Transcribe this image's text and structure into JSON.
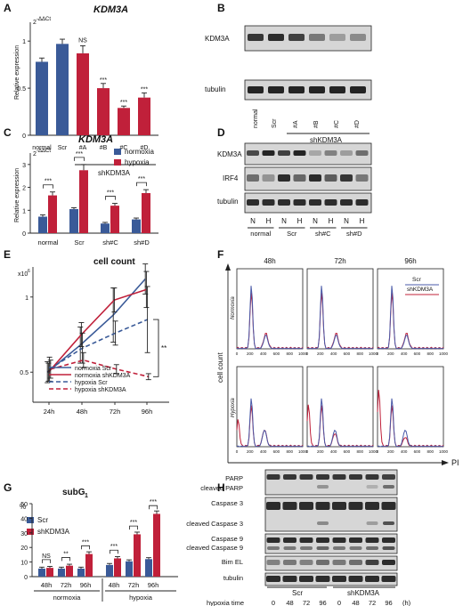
{
  "colors": {
    "blue": "#3a5a98",
    "red": "#c0203a",
    "errbar": "#222222",
    "flow_blue": "#4a5aa8",
    "flow_red": "#c0203a"
  },
  "panels": {
    "A": {
      "letter": "A",
      "title": "KDM3A",
      "ylabel_units": "2",
      "ylabel_sup": "-ΔΔCt",
      "ylabel": "Relative expression",
      "group_label": "shKDM3A",
      "ns": "NS",
      "star": "***"
    },
    "B": {
      "letter": "B",
      "row_labels": [
        "KDM3A",
        "tubulin"
      ],
      "lanes": [
        "normal",
        "Scr",
        "#A",
        "#B",
        "#C",
        "#D"
      ],
      "group_label": "shKDM3A"
    },
    "C": {
      "letter": "C",
      "title": "KDM3A",
      "ylabel_units": "2",
      "ylabel_sup": "-ΔΔCt",
      "ylabel": "Relative expression",
      "legend": [
        "normoxia",
        "hypoxia"
      ],
      "star": "***"
    },
    "D": {
      "letter": "D",
      "row_labels": [
        "KDM3A",
        "IRF4",
        "tubulin"
      ],
      "lane_labels": [
        "N",
        "H",
        "N",
        "H",
        "N",
        "H",
        "N",
        "H"
      ],
      "groups": [
        "normal",
        "Scr",
        "sh#C",
        "sh#D"
      ]
    },
    "E": {
      "letter": "E",
      "title": "cell count",
      "y_unit": "x10",
      "y_unit_sup": "6",
      "sig": "**",
      "legend": [
        "normoxia Scr",
        "normoxia shKDM3A",
        "hypoxia Scr",
        "hypoxia shKDM3A"
      ]
    },
    "F": {
      "letter": "F",
      "ylabel": "cell count",
      "xlabel": "PI",
      "times": [
        "48h",
        "72h",
        "96h"
      ],
      "rows": [
        "Normoxia",
        "Hypoxia"
      ],
      "legend": [
        "Scr",
        "shKDM3A"
      ],
      "ticks": [
        "0",
        "200",
        "400",
        "600",
        "800",
        "1000"
      ]
    },
    "G": {
      "letter": "G",
      "title": "subG",
      "title_sub": "1",
      "ylabel": "%",
      "legend": [
        "Scr",
        "shKDM3A"
      ],
      "groups": [
        "normoxia",
        "hypoxia"
      ],
      "sig": [
        "NS",
        "**",
        "***",
        "***",
        "***",
        "***"
      ]
    },
    "H": {
      "letter": "H",
      "row_labels": [
        "PARP",
        "cleaved PARP",
        "Caspase 3",
        "cleaved Caspase 3",
        "Caspase 9",
        "cleaved Caspase 9",
        "Bim EL",
        "tubulin"
      ],
      "groups": [
        "Scr",
        "shKDM3A"
      ],
      "footer": "hypoxia time",
      "times": [
        "0",
        "48",
        "72",
        "96",
        "0",
        "48",
        "72",
        "96"
      ],
      "unit": "(h)"
    }
  },
  "chart_data": [
    {
      "panel": "A",
      "type": "bar",
      "categories": [
        "normal",
        "Scr",
        "#A",
        "#B",
        "#C",
        "#D"
      ],
      "values": [
        0.78,
        0.97,
        0.87,
        0.5,
        0.29,
        0.4
      ],
      "errors": [
        0.04,
        0.05,
        0.08,
        0.05,
        0.02,
        0.05
      ],
      "colors": [
        "blue",
        "blue",
        "red",
        "red",
        "red",
        "red"
      ],
      "ylim": [
        0,
        1.2
      ],
      "yticks": [
        "0",
        "0.5",
        "1"
      ]
    },
    {
      "panel": "C",
      "type": "bar",
      "categories": [
        "normal",
        "Scr",
        "sh#C",
        "sh#D"
      ],
      "series": [
        {
          "name": "normoxia",
          "values": [
            0.72,
            1.05,
            0.42,
            0.6
          ],
          "errors": [
            0.08,
            0.06,
            0.05,
            0.06
          ]
        },
        {
          "name": "hypoxia",
          "values": [
            1.65,
            2.75,
            1.2,
            1.75
          ],
          "errors": [
            0.15,
            0.25,
            0.1,
            0.15
          ]
        }
      ],
      "ylim": [
        0,
        3.5
      ],
      "yticks": [
        "0",
        "1",
        "2",
        "3"
      ]
    },
    {
      "panel": "E",
      "type": "line",
      "categories": [
        "24h",
        "48h",
        "72h",
        "96h"
      ],
      "series": [
        {
          "name": "normoxia Scr",
          "values": [
            0.5,
            0.68,
            0.88,
            1.12
          ],
          "errors": [
            0.07,
            0.12,
            0.18,
            0.1
          ]
        },
        {
          "name": "normoxia shKDM3A",
          "values": [
            0.5,
            0.75,
            0.98,
            1.05
          ],
          "errors": [
            0.06,
            0.08,
            0.08,
            0.12
          ]
        },
        {
          "name": "hypoxia Scr",
          "values": [
            0.52,
            0.66,
            0.76,
            0.85
          ],
          "errors": [
            0.08,
            0.1,
            0.08,
            0.22
          ]
        },
        {
          "name": "hypoxia shKDM3A",
          "values": [
            0.52,
            0.58,
            0.52,
            0.47
          ],
          "errors": [
            0.06,
            0.05,
            0.03,
            0.02
          ]
        }
      ],
      "ylim": [
        0.3,
        1.2
      ],
      "yticks": [
        "0.5",
        "1"
      ]
    },
    {
      "panel": "G",
      "type": "bar",
      "categories": [
        "48h",
        "72h",
        "96h",
        "48h",
        "72h",
        "96h"
      ],
      "series": [
        {
          "name": "Scr",
          "values": [
            5.5,
            5.5,
            5.5,
            8,
            10.5,
            12
          ],
          "errors": [
            1,
            1,
            1,
            1,
            1,
            1
          ]
        },
        {
          "name": "shKDM3A",
          "values": [
            6,
            7.5,
            15.5,
            12.5,
            29,
            43
          ],
          "errors": [
            1,
            1,
            1.5,
            1.2,
            1.5,
            2
          ]
        }
      ],
      "ylim": [
        0,
        50
      ],
      "yticks": [
        "0",
        "10",
        "20",
        "30",
        "40",
        "50"
      ]
    }
  ]
}
